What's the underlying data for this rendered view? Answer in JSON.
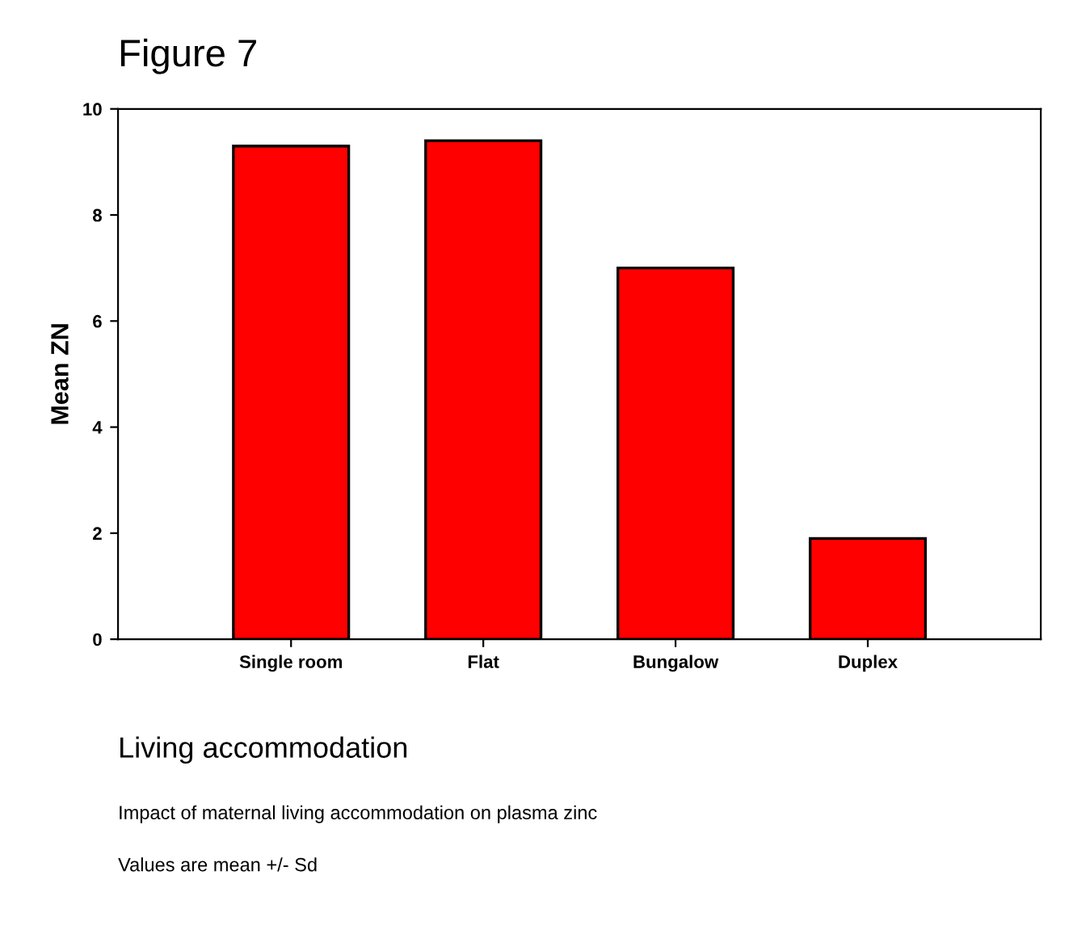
{
  "chart_data": {
    "type": "bar",
    "title": "Figure 7",
    "xlabel": "Living accommodation",
    "ylabel": "Mean ZN",
    "categories": [
      "Single room",
      "Flat",
      "Bungalow",
      "Duplex"
    ],
    "values": [
      9.3,
      9.4,
      7.0,
      1.9
    ],
    "color": "#ff0000",
    "ylim": [
      0,
      10
    ],
    "yticks": [
      0,
      2,
      4,
      6,
      8,
      10
    ],
    "grid": false,
    "legend": false,
    "annotations": [
      "Impact of maternal living accommodation on plasma zinc",
      "Values are mean +/- Sd"
    ]
  }
}
